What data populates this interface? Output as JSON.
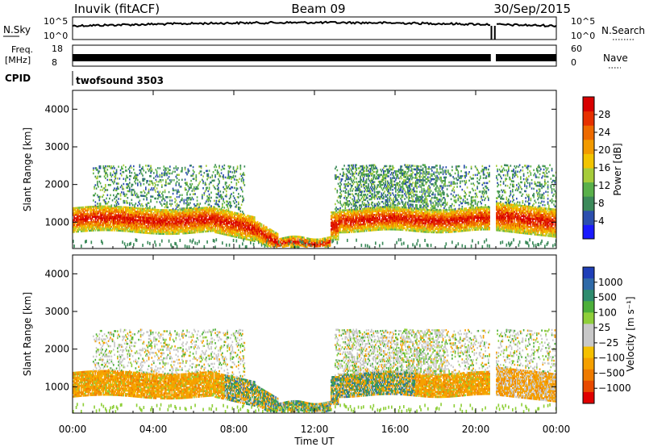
{
  "header": {
    "station": "Inuvik (fitACF)",
    "beam": "Beam 09",
    "date": "30/Sep/2015"
  },
  "strip_panels": {
    "nsky": {
      "label": "N.Sky",
      "left_ticks": [
        "10^5",
        "10^0"
      ],
      "right_ticks": [
        "10^5",
        "10^0"
      ],
      "right_label": "N.Search"
    },
    "freq": {
      "label_lines": [
        "Freq.",
        "[MHz]"
      ],
      "left_ticks": [
        "18",
        "8"
      ],
      "right_ticks": [
        "60",
        "0"
      ],
      "right_label": "Nave"
    },
    "cpid": {
      "label": "CPID",
      "program": "twofsound 3503"
    }
  },
  "chart_data": [
    {
      "type": "heatmap",
      "quantity": "power",
      "ylabel": "Slant Range [km]",
      "ylim": [
        300,
        4500
      ],
      "yticks": [
        1000,
        2000,
        3000,
        4000
      ],
      "xlim_hours": [
        0,
        24
      ],
      "colorbar": {
        "label": "Power [dB]",
        "ticks": [
          4,
          8,
          12,
          16,
          20,
          24,
          28
        ],
        "range": [
          0,
          32
        ],
        "colors": [
          "#1a1aff",
          "#2c4fae",
          "#3c8a5a",
          "#59b04a",
          "#a6cc3a",
          "#f2c400",
          "#f29a00",
          "#ee6a00",
          "#e63000",
          "#d80000"
        ]
      }
    },
    {
      "type": "heatmap",
      "quantity": "velocity",
      "ylabel": "Slant Range [km]",
      "ylim": [
        300,
        4500
      ],
      "yticks": [
        1000,
        2000,
        3000,
        4000
      ],
      "xlim_hours": [
        0,
        24
      ],
      "colorbar": {
        "label": "Velocity [m s⁻¹]",
        "ticks": [
          "1000",
          "500",
          "100",
          "25",
          "−25",
          "−100",
          "−500",
          "−1000"
        ],
        "colors": [
          "#1f3fb8",
          "#2f6aa8",
          "#2f8c6e",
          "#4caf3a",
          "#8fcf3a",
          "#c8c8c8",
          "#c8c8c8",
          "#f5c000",
          "#f5a000",
          "#ee7a00",
          "#e84a00",
          "#e00000"
        ]
      }
    }
  ],
  "x_axis": {
    "tick_labels": [
      "00:00",
      "04:00",
      "08:00",
      "12:00",
      "16:00",
      "20:00",
      "00:00"
    ],
    "label": "Time UT"
  }
}
